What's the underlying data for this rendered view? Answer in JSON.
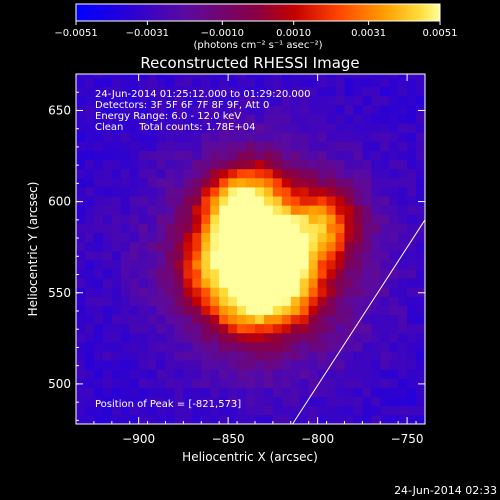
{
  "chart_data": {
    "type": "heatmap",
    "title": "Reconstructed RHESSI Image",
    "xlabel": "Heliocentric X (arcsec)",
    "ylabel": "Heliocentric Y (arcsec)",
    "xlim": [
      -935,
      -740
    ],
    "ylim": [
      478,
      670
    ],
    "x_ticks": [
      -900,
      -850,
      -800,
      -750
    ],
    "x_tick_labels": [
      "−900",
      "−850",
      "−800",
      "−750"
    ],
    "y_ticks": [
      500,
      550,
      600,
      650
    ],
    "y_tick_labels": [
      "500",
      "550",
      "600",
      "650"
    ],
    "colorbar": {
      "range": [
        -0.0051,
        0.0051
      ],
      "ticks": [
        -0.0051,
        -0.0031,
        -0.001,
        0.001,
        0.0031,
        0.0051
      ],
      "tick_labels": [
        "−0.0051",
        "−0.0031",
        "−0.0010",
        "0.0010",
        "0.0031",
        "0.0051"
      ],
      "unit_label": "(photons cm⁻² s⁻¹ asec⁻²)",
      "colormap": [
        "#0000ff",
        "#3300cc",
        "#660099",
        "#990066",
        "#cc0000",
        "#ff3300",
        "#ff7a00",
        "#ffb300",
        "#ffe033",
        "#ffff99"
      ]
    },
    "annotations": [
      "24-Jun-2014 01:25:12.000 to 01:29:20.000",
      "Detectors: 3F 5F 6F 7F 8F 9F, Att 0",
      "Energy Range: 6.0 - 12.0 keV",
      "Clean     Total counts: 1.78E+04"
    ],
    "peak_label": "Position of Peak = [-821,573]",
    "peak": [
      -821,
      573
    ],
    "sources": [
      {
        "x": -821,
        "y": 573,
        "value": 0.0051
      },
      {
        "x": -840,
        "y": 543,
        "value": 0.0044
      },
      {
        "x": -848,
        "y": 592,
        "value": 0.004
      },
      {
        "x": -858,
        "y": 564,
        "value": 0.0036
      },
      {
        "x": -796,
        "y": 588,
        "value": 0.0038
      },
      {
        "x": -836,
        "y": 603,
        "value": 0.0034
      },
      {
        "x": -815,
        "y": 550,
        "value": 0.003
      }
    ],
    "limb_line": [
      [
        -814,
        478
      ],
      [
        -740,
        590
      ]
    ],
    "timestamp": "24-Jun-2014 02:33"
  }
}
